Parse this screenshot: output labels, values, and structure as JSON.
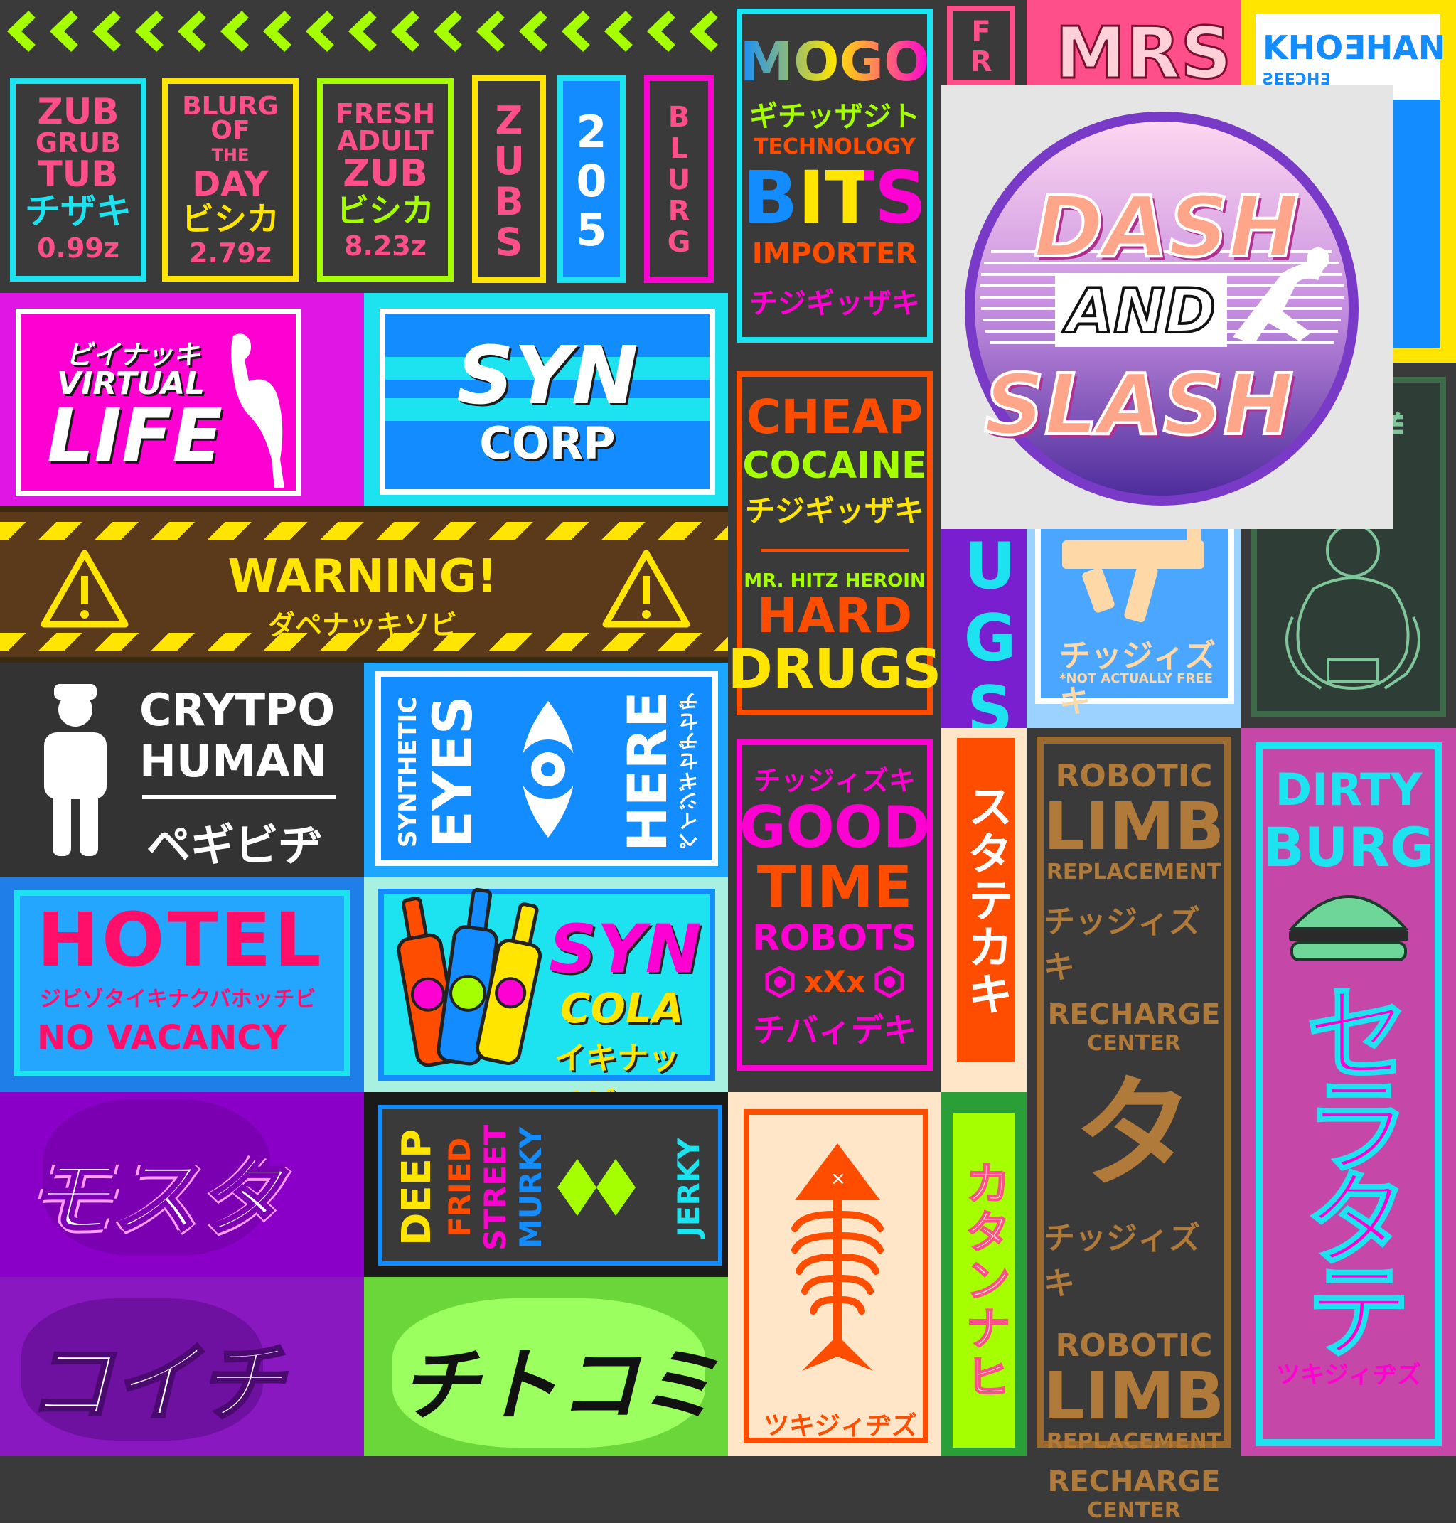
{
  "colors": {
    "bg": "#3a3a3a",
    "cyan": "#1de2ef",
    "magenta": "#ff00d2",
    "lime": "#a6ff00",
    "yellow": "#ffe500",
    "orange": "#ff4d00",
    "blue": "#138cff",
    "pink": "#ff4f8a"
  },
  "top_stalls": [
    {
      "l1": "ZUB",
      "l2": "GRUB",
      "l3": "TUB",
      "jp": "チザキ",
      "price": "0.99z"
    },
    {
      "l1": "BLURG",
      "l2": "OF",
      "l3": "THE",
      "l4": "DAY",
      "jp": "ビシカ",
      "price": "2.79z"
    },
    {
      "l1": "FRESH",
      "l2": "ADULT",
      "l3": "ZUB",
      "jp": "ビシカ",
      "price": "8.23z"
    }
  ],
  "vert_signs": {
    "zubs": "ZUBS",
    "num": "205",
    "blurg": "BLURG"
  },
  "virtual": {
    "jp": "ビイナッキ",
    "line1": "VIRTUAL",
    "line2": "LIFE"
  },
  "syn_corp": {
    "line1": "SYN",
    "line2": "CORP"
  },
  "warning": {
    "title": "WARNING!",
    "jp": "ダペナッキソビ"
  },
  "crypto": {
    "line1": "CRYTPO",
    "line2": "HUMAN",
    "jp": "ペギビヂ"
  },
  "eyes": {
    "l1": "SYNTHETIC",
    "l2": "EYES",
    "l3": "HERE",
    "jp": "ペイジギセヂセヂ"
  },
  "hotel": {
    "title": "HOTEL",
    "jp": "ジビゾタイキナクバホッチビ",
    "status": "NO VACANCY"
  },
  "cola": {
    "line1": "SYN",
    "line2": "COLA",
    "jp": "イキナッヂビ"
  },
  "jp_big1": "モスタテ",
  "jp_big2": "コイチハ",
  "jerky": {
    "w1": "DEEP",
    "w2": "FRIED",
    "w3": "STREET",
    "w4": "MURKY",
    "w5": "JERKY"
  },
  "jp_big3": "チトコミ",
  "mogo": {
    "title": "MOGO",
    "jp1": "ギチッザジト",
    "line2": "TECHNOLOGY",
    "line3": "BITS",
    "line4": "IMPORTER",
    "jp2": "チジギッザキ"
  },
  "cocaine": {
    "l1": "CHEAP",
    "l2": "COCAINE",
    "jp": "チジギッザキ",
    "l3": "MR. HITZ HEROIN",
    "l4": "HARD",
    "l5": "DRUGS"
  },
  "robots": {
    "jp1": "チッジィズキ",
    "l1": "GOOD",
    "l2": "TIME",
    "l3": "ROBOTS",
    "xxx": "xXx",
    "jp2": "チバィデキ"
  },
  "fish": {
    "jp": "ツキジィヂズ"
  },
  "col_fr": {
    "top": "FR",
    "side": "UGS",
    "jp1": "スタテカキ",
    "jp2": "カタンナヒ"
  },
  "mrs": {
    "title": "MRS"
  },
  "gun": {
    "jp": "チッジィズキ",
    "note": "*NOT ACTUALLY FREE"
  },
  "kiosk": {
    "title": "KHOƎHAN",
    "sub": "ƧEEƆHƎ"
  },
  "limb": {
    "l1": "ROBOTIC",
    "l2": "LIMB",
    "l3": "REPLACEMENT",
    "jp": "チッジィズキ",
    "l4": "RECHARGE",
    "l5": "CENTER",
    "big": "タ"
  },
  "burg": {
    "l1": "DIRTY",
    "l2": "BURG",
    "jp": "セラタテ",
    "jp2": "ツキジィヂズ"
  },
  "logo": {
    "w1": "DASH",
    "w2": "AND",
    "w3": "SLASH"
  }
}
